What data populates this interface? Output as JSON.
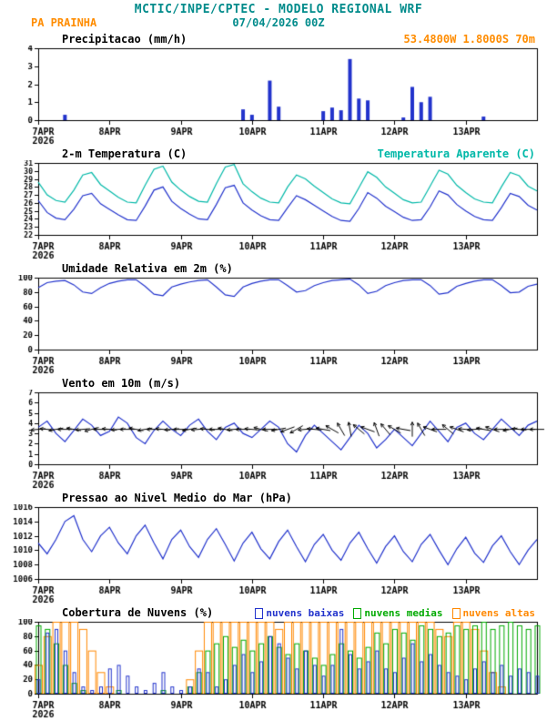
{
  "header": {
    "title": "MCTIC/INPE/CPTEC - MODELO REGIONAL WRF",
    "station": "PA PRAINHA",
    "datetime": "07/04/2026 00Z",
    "location": "53.4800W 1.8000S 70m"
  },
  "colors": {
    "teal": "#008b8b",
    "orange": "#ff8c00",
    "blue": "#2233cc",
    "cyan": "#00b8a8",
    "green": "#00aa00",
    "cloud_high_orange": "#ff8800"
  },
  "panels": {
    "precip": {
      "title": "Precipitacao (mm/h)"
    },
    "temp": {
      "title": "2-m Temperatura (C)",
      "secondary": "Temperatura Aparente (C)"
    },
    "humidity": {
      "title": "Umidade Relativa em 2m (%)"
    },
    "wind": {
      "title": "Vento em 10m (m/s)"
    },
    "pressure": {
      "title": "Pressao ao Nivel Medio do Mar (hPa)"
    },
    "clouds": {
      "title": "Cobertura de Nuvens (%)",
      "legend": [
        {
          "label": "nuvens baixas",
          "color": "#2233cc"
        },
        {
          "label": "nuvens medias",
          "color": "#00aa00"
        },
        {
          "label": "nuvens altas",
          "color": "#ff8800"
        }
      ]
    }
  },
  "time_axis": {
    "days": [
      7,
      8,
      9,
      10,
      11,
      12,
      13
    ],
    "labels": [
      "7APR",
      "8APR",
      "9APR",
      "10APR",
      "11APR",
      "12APR",
      "13APR"
    ],
    "year": "2026",
    "xlim": [
      7,
      14
    ]
  },
  "chart_data": [
    {
      "id": "precip",
      "type": "bar",
      "title": "Precipitacao (mm/h)",
      "xlim": [
        7,
        14
      ],
      "ylim": [
        0,
        4
      ],
      "yticks": [
        0,
        1,
        2,
        3,
        4
      ],
      "x_start": 7,
      "x_step": 0.125,
      "color": "#2233cc",
      "values": [
        0,
        0,
        0,
        0.3,
        0,
        0,
        0,
        0,
        0,
        0,
        0,
        0,
        0,
        0,
        0,
        0,
        0,
        0,
        0,
        0,
        0,
        0,
        0,
        0.6,
        0.3,
        0,
        2.2,
        0.75,
        0,
        0,
        0,
        0,
        0.5,
        0.7,
        0.55,
        3.4,
        1.2,
        1.1,
        0,
        0,
        0,
        0.15,
        1.85,
        1.0,
        1.3,
        0,
        0,
        0,
        0,
        0,
        0.2,
        0,
        0,
        0,
        0,
        0,
        0
      ]
    },
    {
      "id": "temp",
      "type": "line",
      "title": "2-m Temperatura (C)",
      "xlim": [
        7,
        14
      ],
      "ylim": [
        22,
        31
      ],
      "yticks": [
        22,
        23,
        24,
        25,
        26,
        27,
        28,
        29,
        30,
        31
      ],
      "x_start": 7,
      "x_step": 0.125,
      "series": [
        {
          "name": "2-m Temperatura (C)",
          "color": "#2233cc",
          "values": [
            26.3,
            24.8,
            24.1,
            23.9,
            25.2,
            26.9,
            27.2,
            25.9,
            25.2,
            24.5,
            23.9,
            23.8,
            25.6,
            27.6,
            28.0,
            26.2,
            25.3,
            24.6,
            24.0,
            23.9,
            25.8,
            27.9,
            28.2,
            26.0,
            25.1,
            24.4,
            23.9,
            23.8,
            25.4,
            26.9,
            26.4,
            25.7,
            25.0,
            24.3,
            23.8,
            23.7,
            25.3,
            27.3,
            26.6,
            25.6,
            24.9,
            24.2,
            23.8,
            23.9,
            25.5,
            27.5,
            27.0,
            25.8,
            25.0,
            24.3,
            23.9,
            23.8,
            25.4,
            27.2,
            26.8,
            25.7,
            25.1
          ]
        },
        {
          "name": "Temperatura Aparente (C)",
          "color": "#00b8a8",
          "values": [
            28.6,
            27.0,
            26.3,
            26.1,
            27.6,
            29.5,
            29.8,
            28.3,
            27.5,
            26.7,
            26.1,
            26.0,
            28.2,
            30.2,
            30.6,
            28.6,
            27.6,
            26.8,
            26.2,
            26.1,
            28.4,
            30.5,
            30.8,
            28.4,
            27.4,
            26.6,
            26.1,
            26.0,
            28.0,
            29.5,
            29.0,
            28.1,
            27.3,
            26.5,
            26.0,
            25.9,
            27.9,
            29.9,
            29.2,
            28.0,
            27.2,
            26.4,
            26.0,
            26.1,
            28.1,
            30.1,
            29.6,
            28.2,
            27.3,
            26.5,
            26.1,
            26.0,
            28.0,
            29.8,
            29.4,
            28.1,
            27.5
          ]
        }
      ]
    },
    {
      "id": "humidity",
      "type": "line",
      "title": "Umidade Relativa em 2m (%)",
      "xlim": [
        7,
        14
      ],
      "ylim": [
        0,
        100
      ],
      "yticks": [
        0,
        20,
        40,
        60,
        80,
        100
      ],
      "x_start": 7,
      "x_step": 0.125,
      "series": [
        {
          "name": "Umidade Relativa em 2m (%)",
          "color": "#2233cc",
          "values": [
            86,
            93,
            95,
            96,
            90,
            80,
            78,
            86,
            92,
            95,
            97,
            97,
            88,
            77,
            75,
            87,
            91,
            94,
            96,
            97,
            87,
            76,
            74,
            87,
            92,
            95,
            97,
            97,
            89,
            80,
            82,
            89,
            93,
            96,
            97,
            98,
            90,
            78,
            81,
            89,
            93,
            96,
            97,
            97,
            89,
            77,
            79,
            88,
            92,
            95,
            97,
            97,
            89,
            79,
            80,
            88,
            91
          ]
        }
      ]
    },
    {
      "id": "wind",
      "type": "wind",
      "title": "Vento em 10m (m/s)",
      "xlim": [
        7,
        14
      ],
      "ylim": [
        0,
        7
      ],
      "yticks": [
        0,
        1,
        2,
        3,
        4,
        5,
        6,
        7
      ],
      "x_start": 7,
      "x_step": 0.125,
      "arrow_y": 3.4,
      "series": [
        {
          "name": "Velocidade do vento (m/s)",
          "color": "#2233cc",
          "values": [
            3.6,
            4.2,
            3.0,
            2.2,
            3.3,
            4.4,
            3.8,
            2.8,
            3.2,
            4.6,
            4.0,
            2.6,
            2.0,
            3.3,
            4.2,
            3.4,
            2.8,
            3.8,
            4.4,
            3.2,
            2.4,
            3.6,
            4.0,
            3.0,
            2.6,
            3.4,
            4.2,
            3.6,
            2.0,
            1.2,
            2.8,
            3.8,
            3.0,
            2.2,
            1.4,
            2.6,
            3.8,
            3.0,
            1.6,
            2.4,
            3.4,
            2.6,
            1.8,
            3.0,
            4.2,
            3.2,
            2.2,
            3.6,
            4.0,
            3.0,
            2.4,
            3.4,
            4.4,
            3.6,
            2.8,
            3.8,
            4.2
          ]
        }
      ],
      "directions": [
        185,
        175,
        190,
        180,
        170,
        185,
        195,
        180,
        175,
        185,
        180,
        170,
        190,
        180,
        175,
        185,
        180,
        190,
        185,
        175,
        180,
        170,
        185,
        180,
        175,
        165,
        180,
        190,
        200,
        210,
        185,
        175,
        170,
        150,
        120,
        100,
        140,
        160,
        110,
        130,
        150,
        170,
        90,
        120,
        160,
        180,
        140,
        160,
        175,
        185,
        170,
        160,
        180,
        190,
        175,
        180,
        180
      ]
    },
    {
      "id": "pressure",
      "type": "line",
      "title": "Pressao ao Nivel Medio do Mar (hPa)",
      "xlim": [
        7,
        14
      ],
      "ylim": [
        1006,
        1016
      ],
      "yticks": [
        1006,
        1008,
        1010,
        1012,
        1014,
        1016
      ],
      "x_start": 7,
      "x_step": 0.125,
      "series": [
        {
          "name": "Pressao ao nivel medio do mar (hPa)",
          "color": "#2233cc",
          "values": [
            1011.0,
            1009.5,
            1011.5,
            1014.0,
            1014.8,
            1011.5,
            1009.8,
            1012.0,
            1013.2,
            1011.0,
            1009.5,
            1012.0,
            1013.5,
            1011.0,
            1008.8,
            1011.5,
            1012.8,
            1010.5,
            1009.0,
            1011.5,
            1013.0,
            1010.8,
            1008.5,
            1011.0,
            1012.5,
            1010.2,
            1008.8,
            1011.2,
            1012.8,
            1010.5,
            1008.4,
            1010.8,
            1012.2,
            1010.0,
            1008.6,
            1011.0,
            1012.5,
            1010.2,
            1008.2,
            1010.5,
            1012.0,
            1009.8,
            1008.4,
            1010.8,
            1012.2,
            1010.0,
            1008.0,
            1010.2,
            1011.8,
            1009.6,
            1008.3,
            1010.6,
            1012.0,
            1009.8,
            1008.0,
            1010.0,
            1011.5
          ]
        }
      ]
    },
    {
      "id": "clouds",
      "type": "cloudbar",
      "title": "Cobertura de Nuvens (%)",
      "xlim": [
        7,
        14
      ],
      "ylim": [
        0,
        100
      ],
      "yticks": [
        0,
        20,
        40,
        60,
        80,
        100
      ],
      "x_start": 7,
      "x_step": 0.125,
      "series": [
        {
          "name": "nuvens baixas",
          "color": "#2233cc",
          "values": [
            20,
            85,
            90,
            60,
            30,
            10,
            5,
            10,
            35,
            40,
            25,
            10,
            5,
            15,
            30,
            10,
            5,
            10,
            35,
            30,
            10,
            20,
            40,
            55,
            30,
            45,
            80,
            70,
            50,
            35,
            60,
            40,
            25,
            40,
            90,
            55,
            35,
            45,
            60,
            35,
            30,
            50,
            70,
            45,
            55,
            40,
            30,
            25,
            20,
            35,
            45,
            30,
            40,
            25,
            35,
            30,
            25
          ]
        },
        {
          "name": "nuvens medias",
          "color": "#00aa00",
          "values": [
            95,
            90,
            70,
            40,
            15,
            5,
            0,
            0,
            0,
            5,
            0,
            0,
            0,
            0,
            5,
            0,
            0,
            10,
            30,
            60,
            70,
            80,
            65,
            75,
            60,
            70,
            80,
            65,
            55,
            70,
            60,
            50,
            40,
            55,
            70,
            60,
            50,
            65,
            85,
            70,
            90,
            85,
            75,
            95,
            90,
            80,
            85,
            95,
            90,
            95,
            100,
            90,
            95,
            100,
            95,
            90,
            95
          ]
        },
        {
          "name": "nuvens altas",
          "color": "#ff8800",
          "values": [
            40,
            80,
            100,
            100,
            100,
            90,
            60,
            30,
            10,
            0,
            0,
            0,
            0,
            0,
            0,
            0,
            0,
            20,
            60,
            100,
            100,
            100,
            100,
            100,
            100,
            100,
            100,
            90,
            100,
            100,
            100,
            100,
            100,
            100,
            100,
            100,
            100,
            100,
            100,
            100,
            100,
            100,
            100,
            100,
            100,
            90,
            80,
            100,
            100,
            90,
            60,
            30,
            10,
            0,
            0,
            0,
            0
          ]
        }
      ]
    }
  ]
}
